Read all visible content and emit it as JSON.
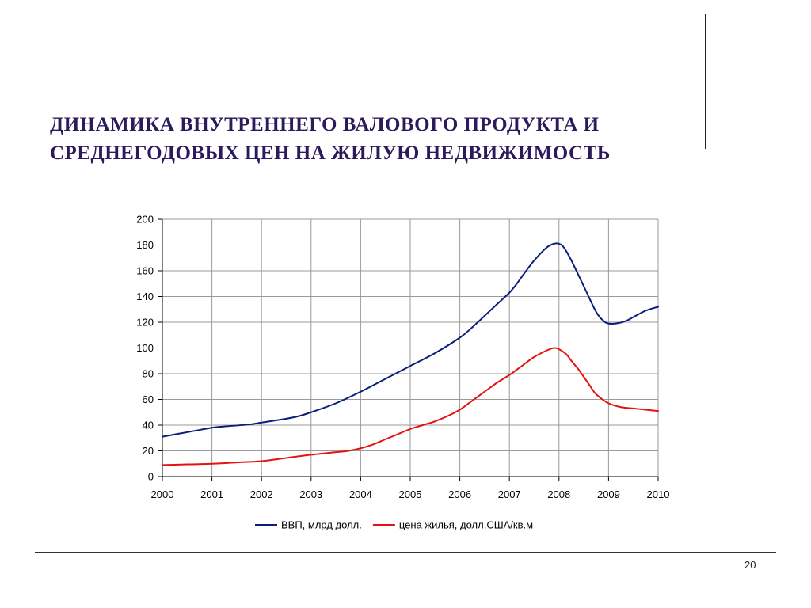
{
  "slide": {
    "title_line1": "ДИНАМИКА  ВНУТРЕННЕГО  ВАЛОВОГО  ПРОДУКТА  И",
    "title_line2": "СРЕДНЕГОДОВЫХ  ЦЕН  НА  ЖИЛУЮ НЕДВИЖИМОСТЬ",
    "page_number": "20"
  },
  "chart_data": {
    "type": "line",
    "x_ticks": [
      "2000",
      "2001",
      "2002",
      "2003",
      "2004",
      "2005",
      "2006",
      "2007",
      "2008",
      "2009",
      "2010"
    ],
    "y_ticks": [
      "0",
      "20",
      "40",
      "60",
      "80",
      "100",
      "120",
      "140",
      "160",
      "180",
      "200"
    ],
    "xlim": [
      2000,
      2010
    ],
    "ylim": [
      0,
      200
    ],
    "grid": true,
    "legend_position": "bottom",
    "series": [
      {
        "name": "ВВП, млрд долл.",
        "color": "#0a1e7a",
        "points": [
          [
            2000,
            31
          ],
          [
            2000.5,
            34.5
          ],
          [
            2001,
            38
          ],
          [
            2001.25,
            39
          ],
          [
            2001.75,
            40.5
          ],
          [
            2002,
            42
          ],
          [
            2002.5,
            45
          ],
          [
            2002.75,
            47
          ],
          [
            2003,
            50
          ],
          [
            2003.5,
            57
          ],
          [
            2004,
            66
          ],
          [
            2004.5,
            76
          ],
          [
            2005,
            86
          ],
          [
            2005.5,
            96
          ],
          [
            2006,
            108
          ],
          [
            2006.25,
            116
          ],
          [
            2006.5,
            125
          ],
          [
            2006.75,
            134
          ],
          [
            2007,
            143
          ],
          [
            2007.15,
            150
          ],
          [
            2007.3,
            158
          ],
          [
            2007.5,
            168
          ],
          [
            2007.75,
            178
          ],
          [
            2007.9,
            181
          ],
          [
            2008,
            181
          ],
          [
            2008.1,
            178
          ],
          [
            2008.25,
            168
          ],
          [
            2008.5,
            148
          ],
          [
            2008.75,
            128
          ],
          [
            2008.9,
            121
          ],
          [
            2009,
            119
          ],
          [
            2009.15,
            119
          ],
          [
            2009.35,
            121
          ],
          [
            2009.5,
            124
          ],
          [
            2009.75,
            129
          ],
          [
            2010,
            132
          ]
        ]
      },
      {
        "name": "цена жилья, долл.США/кв.м",
        "color": "#e3140f",
        "points": [
          [
            2000,
            9
          ],
          [
            2000.5,
            9.5
          ],
          [
            2001,
            10
          ],
          [
            2001.5,
            11
          ],
          [
            2002,
            12
          ],
          [
            2002.5,
            14.5
          ],
          [
            2003,
            17
          ],
          [
            2003.5,
            19
          ],
          [
            2003.75,
            20
          ],
          [
            2004,
            22
          ],
          [
            2004.25,
            25
          ],
          [
            2004.5,
            29
          ],
          [
            2004.75,
            33
          ],
          [
            2005,
            37
          ],
          [
            2005.25,
            40
          ],
          [
            2005.5,
            43
          ],
          [
            2005.75,
            47
          ],
          [
            2006,
            52
          ],
          [
            2006.25,
            59
          ],
          [
            2006.5,
            66
          ],
          [
            2006.75,
            73
          ],
          [
            2007,
            79
          ],
          [
            2007.25,
            86
          ],
          [
            2007.5,
            93
          ],
          [
            2007.75,
            98
          ],
          [
            2007.9,
            100
          ],
          [
            2008,
            99
          ],
          [
            2008.15,
            95
          ],
          [
            2008.25,
            90
          ],
          [
            2008.4,
            83
          ],
          [
            2008.6,
            72
          ],
          [
            2008.75,
            64
          ],
          [
            2009,
            57
          ],
          [
            2009.25,
            54
          ],
          [
            2009.5,
            53
          ],
          [
            2009.75,
            52
          ],
          [
            2010,
            51
          ]
        ]
      }
    ]
  }
}
